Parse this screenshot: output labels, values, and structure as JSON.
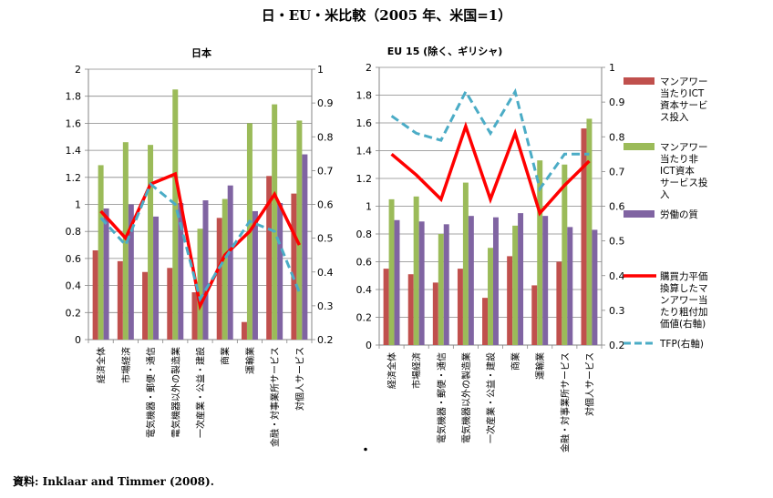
{
  "title": "日・EU・米比較（2005 年、米国=1）",
  "source": "資料: Inklaar and Timmer (2008).",
  "footnote_mark": "・",
  "colors": {
    "ict": "#c0504d",
    "nonict": "#9bbb59",
    "labor": "#8064a2",
    "ppp": "#ff0000",
    "tfp": "#4bacc6"
  },
  "legend": [
    {
      "key": "ict",
      "type": "bar",
      "label": "マンアワー当たりICT資本サービス投入"
    },
    {
      "key": "nonict",
      "type": "bar",
      "label": "マンアワー当たり非ICT資本サービス投入"
    },
    {
      "key": "labor",
      "type": "bar",
      "label": "労働の質"
    },
    {
      "key": "ppp",
      "type": "solid",
      "label": "購買力平価換算したマンアワー当たり粗付加価値(右軸)"
    },
    {
      "key": "tfp",
      "type": "dash",
      "label": "TFP(右軸)"
    }
  ],
  "chart_data": [
    {
      "type": "bar",
      "title": "日本",
      "categories": [
        "経済全体",
        "市場経済",
        "電気機器・郵便・通信",
        "電気機器以外の製造業",
        "一次産業・公益・建設",
        "商業",
        "運輸業",
        "金融・対事業所サービス",
        "対個人サービス"
      ],
      "ylim": [
        0,
        2
      ],
      "y2lim": [
        0.2,
        1
      ],
      "yticks": [
        "0",
        "0.2",
        "0.4",
        "0.6",
        "0.8",
        "1",
        "1.2",
        "1.4",
        "1.6",
        "1.8",
        "2"
      ],
      "y2ticks": [
        "0.2",
        "0.3",
        "0.4",
        "0.5",
        "0.6",
        "0.7",
        "0.8",
        "0.9",
        "1"
      ],
      "series": [
        {
          "name": "マンアワー当たりICT資本サービス投入",
          "key": "ict",
          "axis": "left",
          "values": [
            0.66,
            0.58,
            0.5,
            0.53,
            0.35,
            0.9,
            0.13,
            1.21,
            1.08
          ]
        },
        {
          "name": "マンアワー当たり非ICT資本サービス投入",
          "key": "nonict",
          "axis": "left",
          "values": [
            1.29,
            1.46,
            1.44,
            1.85,
            0.82,
            1.04,
            1.6,
            1.74,
            1.62
          ]
        },
        {
          "name": "労働の質",
          "key": "labor",
          "axis": "left",
          "values": [
            0.97,
            1.0,
            0.91,
            1.01,
            1.03,
            1.14,
            0.95,
            1.01,
            1.37
          ]
        },
        {
          "name": "購買力平価換算したマンアワー当たり粗付加価値(右軸)",
          "key": "ppp",
          "axis": "right",
          "values": [
            0.58,
            0.5,
            0.66,
            0.69,
            0.3,
            0.45,
            0.52,
            0.63,
            0.48
          ]
        },
        {
          "name": "TFP(右軸)",
          "key": "tfp",
          "axis": "right",
          "values": [
            0.56,
            0.48,
            0.66,
            0.6,
            0.32,
            0.44,
            0.55,
            0.52,
            0.34
          ]
        }
      ]
    },
    {
      "type": "bar",
      "title": "EU 15 (除く、ギリシャ)",
      "categories": [
        "経済全体",
        "市場経済",
        "電気機器・郵便・通信",
        "電気機器以外の製造業",
        "一次産業・公益・建設",
        "商業",
        "運輸業",
        "金融・対事業所サービス",
        "対個人サービス"
      ],
      "ylim": [
        0,
        2
      ],
      "y2lim": [
        0.2,
        1
      ],
      "yticks": [
        "0",
        "0.2",
        "0.4",
        "0.6",
        "0.8",
        "1",
        "1.2",
        "1.4",
        "1.6",
        "1.8",
        "2"
      ],
      "y2ticks": [
        "0.2",
        "0.3",
        "0.4",
        "0.5",
        "0.6",
        "0.7",
        "0.8",
        "0.9",
        "1"
      ],
      "series": [
        {
          "name": "マンアワー当たりICT資本サービス投入",
          "key": "ict",
          "axis": "left",
          "values": [
            0.55,
            0.51,
            0.45,
            0.55,
            0.34,
            0.64,
            0.43,
            0.6,
            1.56
          ]
        },
        {
          "name": "マンアワー当たり非ICT資本サービス投入",
          "key": "nonict",
          "axis": "left",
          "values": [
            1.05,
            1.07,
            0.8,
            1.17,
            0.7,
            0.86,
            1.33,
            1.3,
            1.63
          ]
        },
        {
          "name": "労働の質",
          "key": "labor",
          "axis": "left",
          "values": [
            0.9,
            0.89,
            0.87,
            0.93,
            0.92,
            0.95,
            0.93,
            0.85,
            0.83
          ]
        },
        {
          "name": "購買力平価換算したマンアワー当たり粗付加価値(右軸)",
          "key": "ppp",
          "axis": "right",
          "values": [
            0.75,
            0.69,
            0.62,
            0.83,
            0.62,
            0.81,
            0.58,
            0.66,
            0.73
          ]
        },
        {
          "name": "TFP(右軸)",
          "key": "tfp",
          "axis": "right",
          "values": [
            0.86,
            0.81,
            0.79,
            0.93,
            0.81,
            0.93,
            0.65,
            0.75,
            0.75
          ]
        }
      ]
    }
  ]
}
